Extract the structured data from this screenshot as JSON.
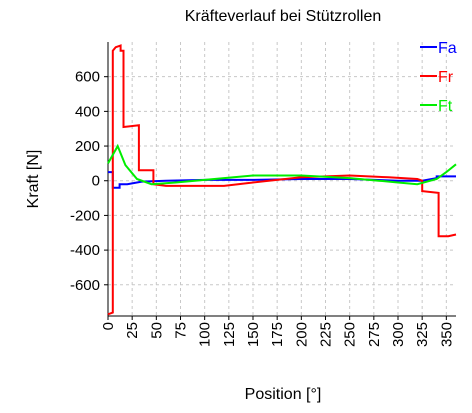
{
  "chart_data": {
    "type": "line",
    "title": "Kräfteverlauf bei Stützrollen",
    "xlabel": "Position [°]",
    "ylabel": "Kraft [N]",
    "xlim": [
      0,
      360
    ],
    "ylim": [
      -780,
      800
    ],
    "x_ticks": [
      0,
      25,
      50,
      75,
      100,
      125,
      150,
      175,
      200,
      225,
      250,
      275,
      300,
      325,
      350
    ],
    "y_ticks": [
      -600,
      -400,
      -200,
      0,
      200,
      400,
      600
    ],
    "grid": true,
    "legend_position": "top-right",
    "series": [
      {
        "name": "Fa",
        "color": "#0000ff",
        "x": [
          0,
          5,
          5,
          12,
          12,
          20,
          35,
          60,
          100,
          150,
          200,
          250,
          300,
          325,
          340,
          340,
          350,
          360
        ],
        "y": [
          50,
          50,
          -40,
          -40,
          -20,
          -20,
          -5,
          0,
          5,
          5,
          10,
          10,
          0,
          0,
          15,
          25,
          25,
          25
        ]
      },
      {
        "name": "Fr",
        "color": "#ff0000",
        "x": [
          0,
          5,
          5,
          8,
          13,
          13,
          16,
          16,
          32,
          32,
          47,
          47,
          60,
          80,
          120,
          150,
          200,
          250,
          290,
          320,
          325,
          325,
          342,
          342,
          352,
          360
        ],
        "y": [
          -770,
          -760,
          750,
          770,
          780,
          750,
          750,
          310,
          320,
          60,
          60,
          -20,
          -30,
          -30,
          -30,
          -10,
          20,
          30,
          20,
          10,
          0,
          -60,
          -70,
          -320,
          -320,
          -310
        ]
      },
      {
        "name": "Ft",
        "color": "#00ee00",
        "x": [
          0,
          10,
          18,
          30,
          45,
          70,
          100,
          150,
          200,
          250,
          280,
          300,
          320,
          340,
          350,
          360
        ],
        "y": [
          100,
          200,
          90,
          10,
          -20,
          -10,
          5,
          30,
          30,
          15,
          0,
          -10,
          -20,
          10,
          50,
          95
        ]
      }
    ]
  }
}
